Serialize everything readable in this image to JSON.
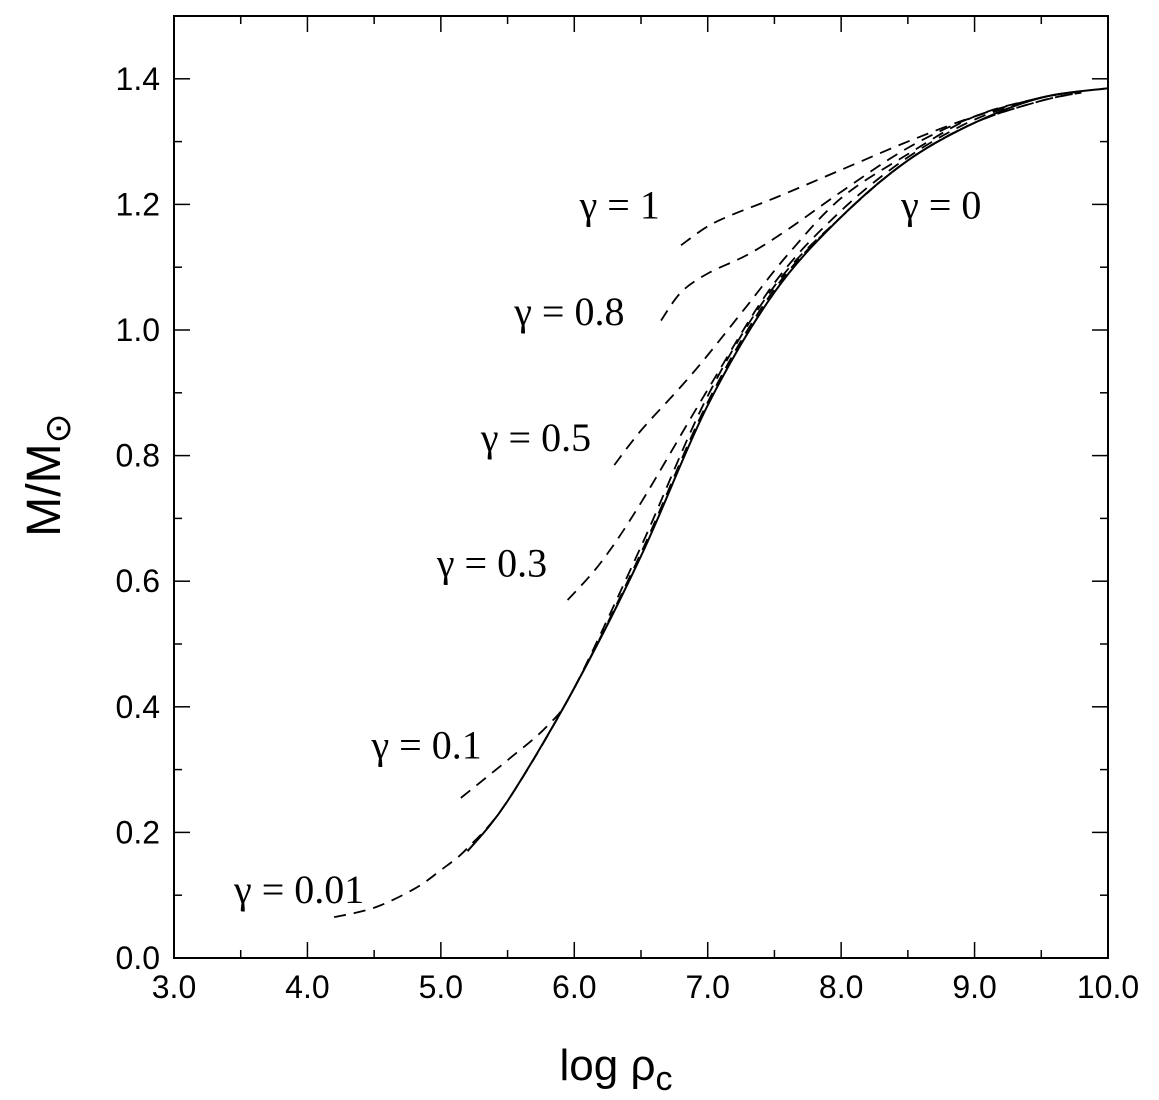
{
  "chart_data": {
    "type": "line",
    "title": "",
    "xlabel": {
      "main": "log ρ",
      "sub": "c"
    },
    "ylabel": {
      "main": "M/M",
      "sub": "⊙"
    },
    "xlim": [
      3.0,
      10.0
    ],
    "ylim": [
      0.0,
      1.5
    ],
    "x_ticks": [
      "3.0",
      "4.0",
      "5.0",
      "6.0",
      "7.0",
      "8.0",
      "9.0",
      "10.0"
    ],
    "y_ticks": [
      "0.0",
      "0.2",
      "0.4",
      "0.6",
      "0.8",
      "1.0",
      "1.2",
      "1.4"
    ],
    "grid": false,
    "series": [
      {
        "name": "γ = 0",
        "style": "solid",
        "x": [
          5.2,
          5.5,
          6.0,
          6.5,
          7.0,
          7.5,
          8.0,
          8.5,
          9.0,
          9.5,
          10.0
        ],
        "y": [
          0.17,
          0.25,
          0.43,
          0.64,
          0.88,
          1.06,
          1.18,
          1.27,
          1.33,
          1.37,
          1.385
        ],
        "label_text": "γ = 0"
      },
      {
        "name": "γ = 0.01",
        "style": "dashed",
        "x": [
          4.2,
          4.5,
          4.8,
          5.0,
          5.2,
          5.5,
          6.0,
          6.5,
          7.0,
          7.5,
          8.0,
          8.5,
          9.0,
          9.5,
          9.8
        ],
        "y": [
          0.065,
          0.08,
          0.11,
          0.14,
          0.175,
          0.25,
          0.43,
          0.645,
          0.885,
          1.065,
          1.18,
          1.27,
          1.33,
          1.365,
          1.378
        ],
        "label_text": "γ = 0.01"
      },
      {
        "name": "γ = 0.1",
        "style": "dashed",
        "x": [
          5.15,
          5.5,
          5.8,
          6.0,
          6.5,
          7.0,
          7.5,
          8.0,
          8.5,
          9.0,
          9.5,
          9.8
        ],
        "y": [
          0.255,
          0.315,
          0.37,
          0.43,
          0.655,
          0.895,
          1.07,
          1.18,
          1.27,
          1.33,
          1.365,
          1.378
        ],
        "label_text": "γ = 0.1"
      },
      {
        "name": "γ = 0.3",
        "style": "dashed",
        "x": [
          5.95,
          6.2,
          6.5,
          7.0,
          7.5,
          8.0,
          8.5,
          9.0,
          9.5,
          9.8
        ],
        "y": [
          0.57,
          0.63,
          0.725,
          0.905,
          1.075,
          1.19,
          1.275,
          1.335,
          1.37,
          1.38
        ],
        "label_text": "γ = 0.3"
      },
      {
        "name": "γ = 0.5",
        "style": "dashed",
        "x": [
          6.3,
          6.5,
          6.8,
          7.0,
          7.3,
          7.6,
          8.0,
          8.5,
          9.0,
          9.5,
          9.8
        ],
        "y": [
          0.785,
          0.84,
          0.91,
          0.96,
          1.04,
          1.12,
          1.21,
          1.28,
          1.34,
          1.37,
          1.38
        ],
        "label_text": "γ = 0.5"
      },
      {
        "name": "γ = 0.8",
        "style": "dashed",
        "x": [
          6.65,
          6.8,
          7.0,
          7.3,
          7.6,
          8.0,
          8.5,
          9.0,
          9.5,
          9.8
        ],
        "y": [
          1.015,
          1.06,
          1.09,
          1.12,
          1.16,
          1.22,
          1.29,
          1.34,
          1.37,
          1.38
        ],
        "label_text": "γ = 0.8"
      },
      {
        "name": "γ = 1",
        "style": "dashed",
        "x": [
          6.8,
          7.0,
          7.2,
          7.5,
          8.0,
          8.5,
          9.0,
          9.5,
          9.8
        ],
        "y": [
          1.135,
          1.165,
          1.185,
          1.21,
          1.255,
          1.3,
          1.34,
          1.37,
          1.38
        ],
        "label_text": "γ = 1"
      }
    ]
  }
}
